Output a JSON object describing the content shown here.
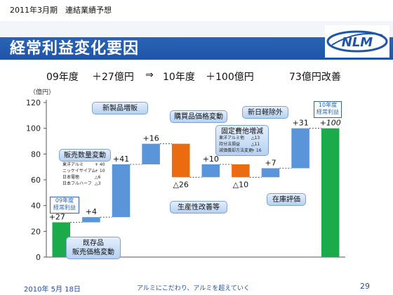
{
  "header": {
    "subtitle": "2011年3月期　連結業績予想",
    "title": "経常利益変化要因",
    "logo_text": "NLM"
  },
  "summary": {
    "fy09": "09年度",
    "fy09_value": "＋27億円",
    "arrow": "⇒",
    "fy10": "10年度",
    "fy10_value": "＋100億円",
    "improvement": "73億円改善"
  },
  "chart_data": {
    "type": "waterfall",
    "ylabel": "（億円）",
    "ylim": [
      0,
      120
    ],
    "yticks": [
      0,
      20,
      40,
      60,
      80,
      100,
      120
    ],
    "bars": [
      {
        "key": "start",
        "kind": "total",
        "value": 27,
        "label": "+27",
        "color": "#1bab4a"
      },
      {
        "key": "price",
        "kind": "up",
        "value": 4,
        "label": "+4",
        "color": "#5b95d9"
      },
      {
        "key": "volume",
        "kind": "up",
        "value": 41,
        "label": "+41",
        "color": "#5b95d9"
      },
      {
        "key": "newprod",
        "kind": "up",
        "value": 16,
        "label": "+16",
        "color": "#5b95d9"
      },
      {
        "key": "purchase",
        "kind": "down",
        "value": -26,
        "label": "△26",
        "color": "#ec6a10"
      },
      {
        "key": "productivity",
        "kind": "up",
        "value": 10,
        "label": "+10",
        "color": "#5b95d9"
      },
      {
        "key": "fixed",
        "kind": "down",
        "value": -10,
        "label": "△10",
        "color": "#ec6a10"
      },
      {
        "key": "inventory",
        "kind": "up",
        "value": 7,
        "label": "+7",
        "color": "#5b95d9"
      },
      {
        "key": "nonop",
        "kind": "up",
        "value": 31,
        "label": "+31",
        "color": "#5b95d9"
      },
      {
        "key": "end",
        "kind": "total",
        "value": 100,
        "label": "+100",
        "color": "#1bab4a"
      }
    ]
  },
  "callouts": {
    "volume": "販売数量変動",
    "volume_details": [
      {
        "name": "東洋アルミ",
        "value": "+ 40"
      },
      {
        "name": "ニッケイサイアム",
        "value": "+ 10"
      },
      {
        "name": "日本電極",
        "value": "△6"
      },
      {
        "name": "日本フルハーフ",
        "value": "△3"
      }
    ],
    "price_line1": "既存品",
    "price_line2": "販売価格変動",
    "newprod": "新製品増販",
    "purchase": "購買品価格変動",
    "productivity": "生産性改善等",
    "fixed": "固定費他増減",
    "fixed_details": [
      {
        "name": "東洋アルミ他",
        "value": "△13"
      },
      {
        "name": "持分法損益",
        "value": "△11"
      },
      {
        "name": "減価償却方法変更",
        "value": "+ 16"
      }
    ],
    "inventory": "在庫評価",
    "nonop": "新日軽除外",
    "start_label_1": "09年度",
    "start_label_2": "経常利益",
    "end_label_1": "10年度",
    "end_label_2": "経常利益"
  },
  "footer": {
    "date": "2010年 5月 18日",
    "slogan": "アルミにこだわり、アルミを超えていく",
    "page": "29"
  }
}
